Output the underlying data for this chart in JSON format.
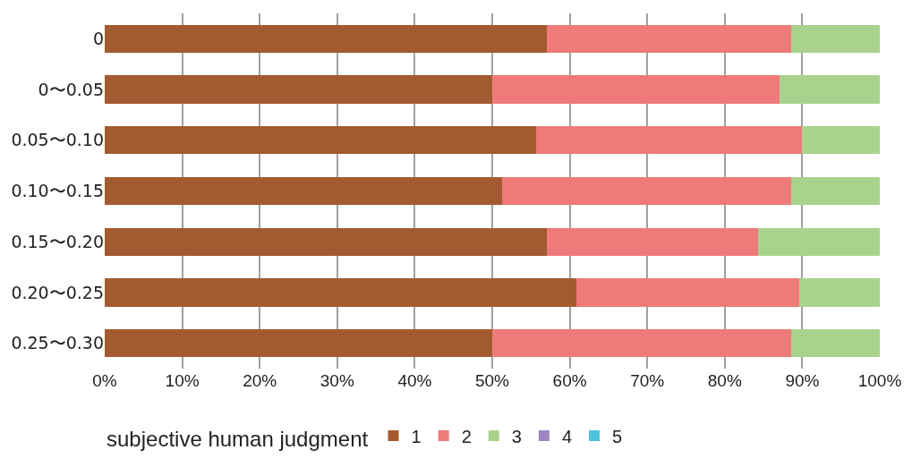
{
  "chart_data": {
    "type": "bar",
    "orientation": "horizontal",
    "stacked": true,
    "categories": [
      "0",
      "0〜0.05",
      "0.05〜0.10",
      "0.10〜0.15",
      "0.15〜0.20",
      "0.20〜0.25",
      "0.25〜0.30"
    ],
    "series": [
      {
        "name": "1",
        "color": "#a45a30",
        "values": [
          57.1,
          50.0,
          55.7,
          51.3,
          57.1,
          60.8,
          50.0
        ]
      },
      {
        "name": "2",
        "color": "#ee7a7a",
        "values": [
          31.5,
          37.1,
          34.3,
          37.3,
          27.2,
          28.8,
          38.6
        ]
      },
      {
        "name": "3",
        "color": "#a9d38c",
        "values": [
          11.4,
          12.9,
          10.0,
          11.4,
          15.7,
          10.4,
          11.4
        ]
      },
      {
        "name": "4",
        "color": "#9e86c4",
        "values": [
          0,
          0,
          0,
          0,
          0,
          0,
          0
        ]
      },
      {
        "name": "5",
        "color": "#4cc4dc",
        "values": [
          0,
          0,
          0,
          0,
          0,
          0,
          0
        ]
      }
    ],
    "xlim": [
      0,
      100
    ],
    "xticks": [
      {
        "value": 0,
        "label": "0%"
      },
      {
        "value": 10,
        "label": "10%"
      },
      {
        "value": 20,
        "label": "20%"
      },
      {
        "value": 30,
        "label": "30%"
      },
      {
        "value": 40,
        "label": "40%"
      },
      {
        "value": 50,
        "label": "50%"
      },
      {
        "value": 60,
        "label": "60%"
      },
      {
        "value": 70,
        "label": "70%"
      },
      {
        "value": 80,
        "label": "80%"
      },
      {
        "value": 90,
        "label": "90%"
      },
      {
        "value": 100,
        "label": "100%"
      }
    ],
    "legend_title": "subjective human judgment",
    "legend": "bottom",
    "grid": "x"
  }
}
